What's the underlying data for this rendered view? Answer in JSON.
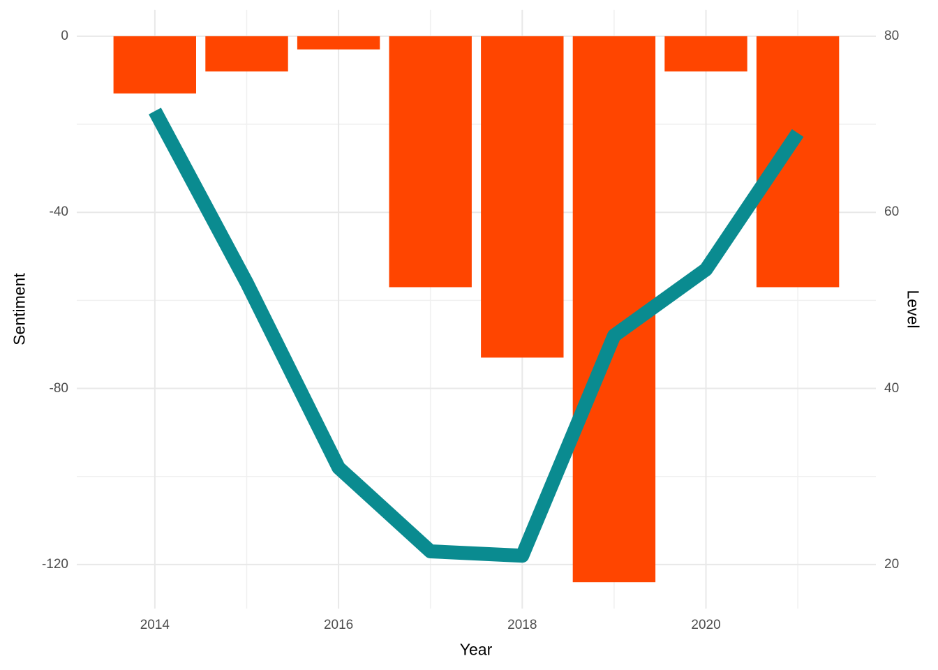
{
  "chart_data": {
    "type": "bar",
    "subtype": "dual-axis bar+line combo",
    "categories": [
      2014,
      2015,
      2016,
      2017,
      2018,
      2019,
      2020,
      2021
    ],
    "series": [
      {
        "name": "Sentiment",
        "type": "bar",
        "axis": "left",
        "color": "#FF4500",
        "values": [
          -13,
          -8,
          -3,
          -57,
          -73,
          -124,
          -8,
          -57
        ]
      },
      {
        "name": "Level",
        "type": "line",
        "axis": "right",
        "color": "#0A8B90",
        "line_width": 20,
        "values": [
          71.5,
          52,
          31,
          21.5,
          21,
          46,
          53.5,
          69
        ]
      }
    ],
    "title": "",
    "xlabel": "Year",
    "ylabel_left": "Sentiment",
    "ylabel_right": "Level",
    "x_tick_labels": [
      "2014",
      "2016",
      "2018",
      "2020"
    ],
    "x_tick_years": [
      2014,
      2016,
      2018,
      2020
    ],
    "x_minor_years": [
      2015,
      2017,
      2019,
      2021
    ],
    "left_tick_labels": [
      "0",
      "-40",
      "-80",
      "-120"
    ],
    "left_tick_values": [
      0,
      -40,
      -80,
      -120
    ],
    "left_minor_values": [
      -20,
      -60,
      -100
    ],
    "right_tick_labels": [
      "80",
      "60",
      "40",
      "20"
    ],
    "right_tick_values": [
      80,
      60,
      40,
      20
    ],
    "left_axis_range": [
      6,
      -130
    ],
    "right_axis_range": [
      83,
      15
    ],
    "x_axis_range": [
      2013.15,
      2021.85
    ],
    "axis_relation": "right_level = 80 + left_sentiment / 2",
    "bar_width_fraction": 0.9,
    "grid": "on",
    "legend_position": "none",
    "colors": {
      "background": "#FFFFFF",
      "grid_major": "#E8E8E8",
      "grid_minor": "#F0F0F0",
      "tick_text": "#4D4D4D",
      "axis_title_text": "#000000",
      "bar": "#FF4500",
      "line": "#0A8B90"
    }
  },
  "titles": {
    "x": "Year",
    "y_left": "Sentiment",
    "y_right": "Level"
  }
}
